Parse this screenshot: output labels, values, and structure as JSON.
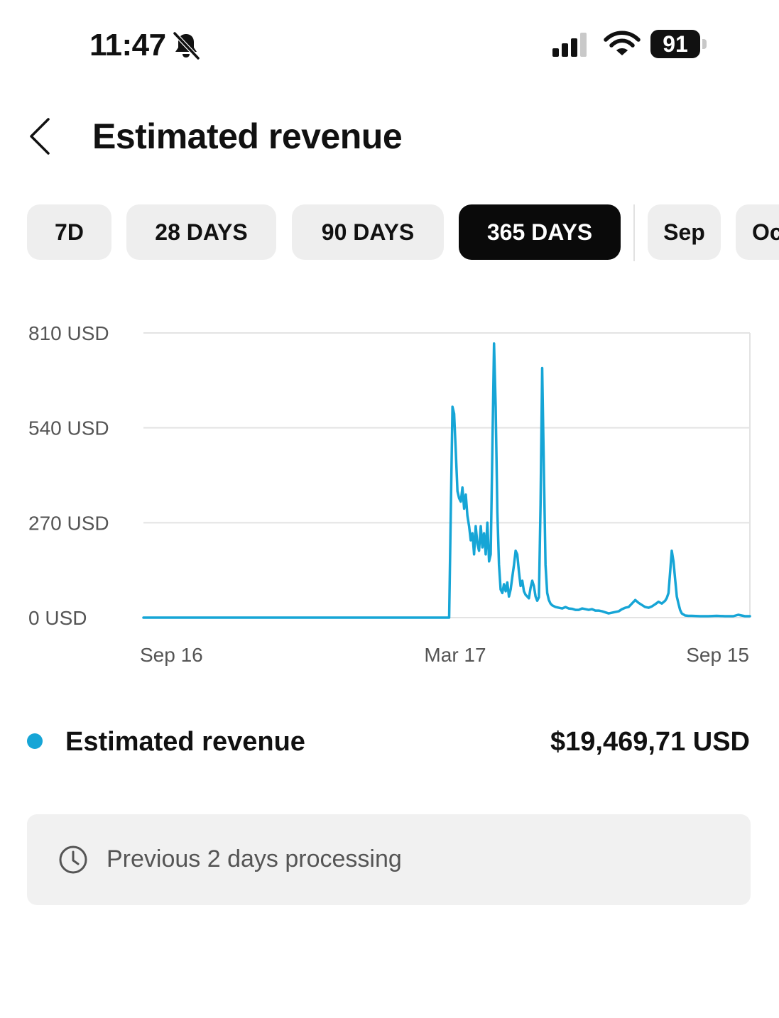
{
  "status_bar": {
    "time": "11:47",
    "battery": "91",
    "icons": [
      "bell-muted-icon",
      "signal-icon",
      "wifi-icon",
      "battery-icon"
    ]
  },
  "header": {
    "title": "Estimated revenue",
    "back_icon": "chevron-left-icon"
  },
  "ranges": [
    {
      "label": "7D",
      "active": false
    },
    {
      "label": "28 DAYS",
      "active": false
    },
    {
      "label": "90 DAYS",
      "active": false
    },
    {
      "label": "365 DAYS",
      "active": true
    },
    {
      "label": "Sep",
      "active": false
    },
    {
      "label": "Oc",
      "active": false
    }
  ],
  "colors": {
    "series": "#16a5d6",
    "active_pill": "#0a0a0a",
    "pill": "#eeeeee",
    "gridline": "#e3e3e3",
    "notice_bg": "#f1f1f1"
  },
  "chart_data": {
    "type": "line",
    "x_tick_labels": [
      "Sep 16",
      "Mar 17",
      "Sep 15"
    ],
    "y_tick_labels": [
      "810 USD",
      "540 USD",
      "270 USD",
      "0 USD"
    ],
    "y_ticks": [
      810,
      540,
      270,
      0
    ],
    "ylim": [
      0,
      810
    ],
    "x_range_days": [
      0,
      365
    ],
    "grid": true,
    "series": [
      {
        "points": [
          [
            0,
            0
          ],
          [
            100,
            0
          ],
          [
            150,
            0
          ],
          [
            183,
            0
          ],
          [
            184,
            0
          ],
          [
            185,
            300
          ],
          [
            186,
            600
          ],
          [
            187,
            580
          ],
          [
            188,
            470
          ],
          [
            189,
            360
          ],
          [
            190,
            340
          ],
          [
            191,
            330
          ],
          [
            192,
            370
          ],
          [
            193,
            310
          ],
          [
            194,
            350
          ],
          [
            195,
            290
          ],
          [
            196,
            260
          ],
          [
            197,
            220
          ],
          [
            198,
            240
          ],
          [
            199,
            180
          ],
          [
            200,
            260
          ],
          [
            201,
            210
          ],
          [
            202,
            190
          ],
          [
            203,
            260
          ],
          [
            204,
            200
          ],
          [
            205,
            240
          ],
          [
            206,
            180
          ],
          [
            207,
            270
          ],
          [
            208,
            160
          ],
          [
            209,
            180
          ],
          [
            210,
            470
          ],
          [
            211,
            780
          ],
          [
            212,
            600
          ],
          [
            213,
            300
          ],
          [
            214,
            150
          ],
          [
            215,
            80
          ],
          [
            216,
            70
          ],
          [
            217,
            95
          ],
          [
            218,
            75
          ],
          [
            219,
            100
          ],
          [
            220,
            60
          ],
          [
            221,
            80
          ],
          [
            222,
            115
          ],
          [
            223,
            150
          ],
          [
            224,
            190
          ],
          [
            225,
            180
          ],
          [
            226,
            130
          ],
          [
            227,
            90
          ],
          [
            228,
            105
          ],
          [
            229,
            75
          ],
          [
            230,
            65
          ],
          [
            231,
            60
          ],
          [
            232,
            55
          ],
          [
            233,
            85
          ],
          [
            234,
            105
          ],
          [
            235,
            90
          ],
          [
            236,
            60
          ],
          [
            237,
            48
          ],
          [
            238,
            58
          ],
          [
            239,
            320
          ],
          [
            240,
            710
          ],
          [
            241,
            420
          ],
          [
            242,
            150
          ],
          [
            243,
            70
          ],
          [
            244,
            50
          ],
          [
            245,
            40
          ],
          [
            246,
            35
          ],
          [
            248,
            30
          ],
          [
            250,
            28
          ],
          [
            252,
            26
          ],
          [
            254,
            30
          ],
          [
            256,
            26
          ],
          [
            258,
            25
          ],
          [
            260,
            22
          ],
          [
            262,
            22
          ],
          [
            264,
            26
          ],
          [
            266,
            24
          ],
          [
            268,
            22
          ],
          [
            270,
            24
          ],
          [
            272,
            20
          ],
          [
            274,
            20
          ],
          [
            276,
            18
          ],
          [
            278,
            15
          ],
          [
            280,
            12
          ],
          [
            282,
            14
          ],
          [
            284,
            16
          ],
          [
            286,
            18
          ],
          [
            288,
            24
          ],
          [
            290,
            28
          ],
          [
            292,
            30
          ],
          [
            294,
            40
          ],
          [
            296,
            50
          ],
          [
            298,
            42
          ],
          [
            300,
            36
          ],
          [
            302,
            30
          ],
          [
            304,
            28
          ],
          [
            306,
            32
          ],
          [
            308,
            38
          ],
          [
            310,
            45
          ],
          [
            312,
            40
          ],
          [
            314,
            48
          ],
          [
            315,
            56
          ],
          [
            316,
            70
          ],
          [
            317,
            130
          ],
          [
            318,
            190
          ],
          [
            319,
            160
          ],
          [
            320,
            110
          ],
          [
            321,
            60
          ],
          [
            322,
            40
          ],
          [
            323,
            22
          ],
          [
            324,
            12
          ],
          [
            326,
            6
          ],
          [
            328,
            5
          ],
          [
            330,
            5
          ],
          [
            335,
            4
          ],
          [
            340,
            4
          ],
          [
            345,
            5
          ],
          [
            350,
            4
          ],
          [
            355,
            4
          ],
          [
            358,
            8
          ],
          [
            362,
            4
          ],
          [
            365,
            4
          ]
        ]
      }
    ]
  },
  "legend": {
    "label": "Estimated revenue",
    "total": "$19,469,71 USD"
  },
  "notice": {
    "icon": "clock-icon",
    "text": "Previous 2 days processing"
  }
}
